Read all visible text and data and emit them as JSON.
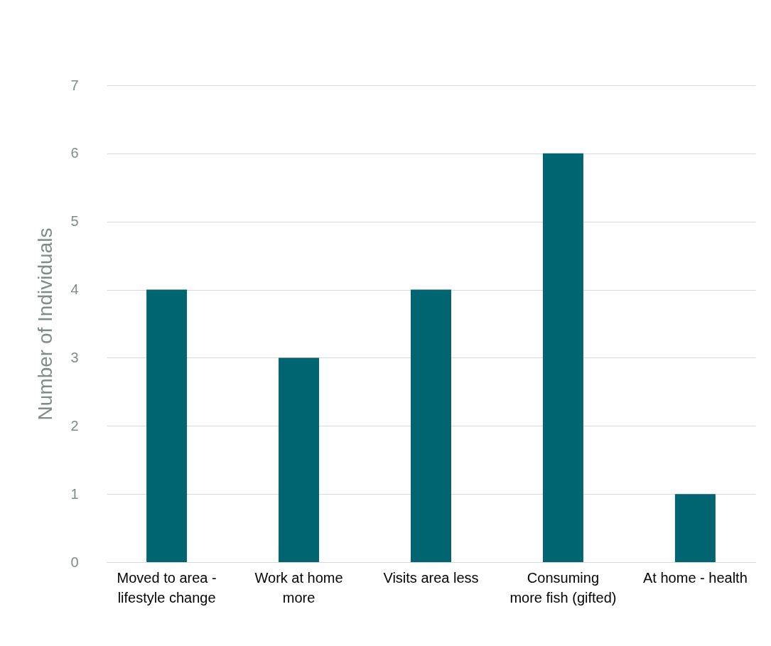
{
  "chart_data": {
    "type": "bar",
    "ylabel": "Number of Individuals",
    "categories": [
      "Moved to area -\nlifestyle change",
      "Work at home\nmore",
      "Visits area less",
      "Consuming\nmore fish (gifted)",
      "At home - health"
    ],
    "values": [
      4,
      3,
      4,
      6,
      1
    ],
    "color": "#006570",
    "ylim": [
      0,
      7
    ],
    "yticks": [
      0,
      1,
      2,
      3,
      4,
      5,
      6,
      7
    ],
    "grid": "y"
  }
}
